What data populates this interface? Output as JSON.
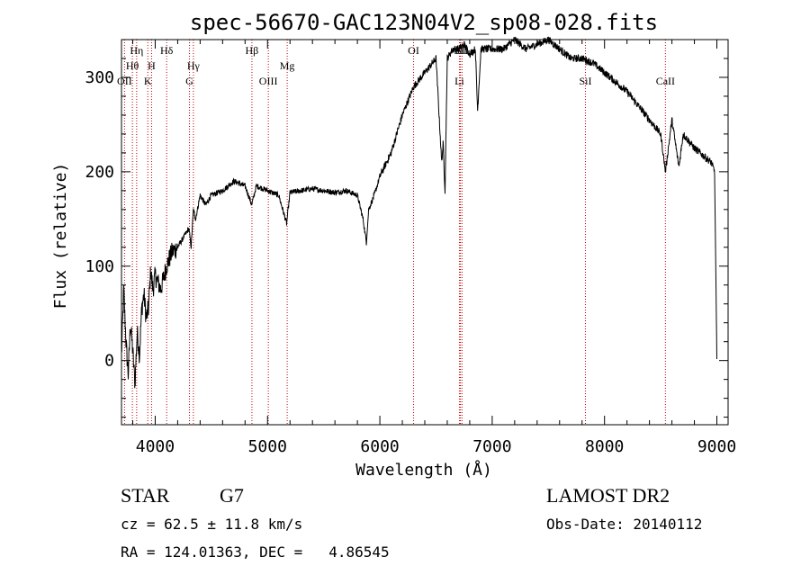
{
  "chart_data": {
    "type": "line",
    "title": "spec-56670-GAC123N04V2_sp08-028.fits",
    "xlabel": "Wavelength (Å)",
    "ylabel": "Flux (relative)",
    "xlim": [
      3700,
      9100
    ],
    "ylim": [
      -68,
      340
    ],
    "xticks": [
      4000,
      5000,
      6000,
      7000,
      8000,
      9000
    ],
    "xtick_labels": [
      "4000",
      "5000",
      "6000",
      "7000",
      "8000",
      "9000"
    ],
    "yticks": [
      0,
      100,
      200,
      300
    ],
    "ytick_labels": [
      "0",
      "100",
      "200",
      "300"
    ],
    "grid": false,
    "line_color": "#000000",
    "marker_color": "#c00000",
    "series": [
      {
        "x": [
          3700,
          3720,
          3740,
          3760,
          3780,
          3800,
          3820,
          3840,
          3860,
          3880,
          3900,
          3920,
          3940,
          3960,
          3980,
          4000,
          4050,
          4100,
          4150,
          4200,
          4250,
          4300,
          4320,
          4340,
          4360,
          4400,
          4450,
          4500,
          4600,
          4700,
          4800,
          4860,
          4900,
          5000,
          5100,
          5170,
          5200,
          5300,
          5400,
          5500,
          5600,
          5700,
          5800,
          5850,
          5880,
          5900,
          5950,
          6000,
          6100,
          6200,
          6300,
          6400,
          6500,
          6550,
          6563,
          6580,
          6600,
          6650,
          6700,
          6750,
          6800,
          6850,
          6870,
          6900,
          7000,
          7100,
          7200,
          7300,
          7400,
          7500,
          7600,
          7700,
          7800,
          7900,
          8000,
          8100,
          8200,
          8300,
          8400,
          8500,
          8542,
          8600,
          8662,
          8700,
          8800,
          8900,
          8950,
          8980,
          9000
        ],
        "y": [
          5,
          75,
          20,
          -15,
          40,
          10,
          -25,
          30,
          5,
          55,
          70,
          45,
          55,
          95,
          75,
          90,
          75,
          100,
          115,
          120,
          130,
          140,
          120,
          160,
          150,
          175,
          165,
          175,
          180,
          190,
          185,
          165,
          185,
          180,
          175,
          145,
          178,
          180,
          182,
          180,
          178,
          180,
          175,
          150,
          125,
          160,
          175,
          195,
          220,
          260,
          290,
          305,
          320,
          210,
          230,
          180,
          320,
          330,
          330,
          335,
          325,
          330,
          265,
          330,
          330,
          330,
          340,
          330,
          335,
          340,
          330,
          320,
          320,
          315,
          305,
          295,
          285,
          270,
          255,
          240,
          200,
          255,
          205,
          240,
          225,
          215,
          210,
          200,
          0
        ]
      }
    ],
    "line_markers": [
      {
        "label": "Hη",
        "wavelength": 3835
      },
      {
        "label": "Hθ",
        "wavelength": 3797
      },
      {
        "label": "OII",
        "wavelength": 3727
      },
      {
        "label": "H",
        "wavelength": 3968
      },
      {
        "label": "K",
        "wavelength": 3934
      },
      {
        "label": "Hδ",
        "wavelength": 4102
      },
      {
        "label": "Hγ",
        "wavelength": 4340
      },
      {
        "label": "G",
        "wavelength": 4305
      },
      {
        "label": "Hβ",
        "wavelength": 4861
      },
      {
        "label": "OIII",
        "wavelength": 5007
      },
      {
        "label": "Mg",
        "wavelength": 5175
      },
      {
        "label": "OI",
        "wavelength": 6300
      },
      {
        "label": "SII",
        "wavelength": 6717
      },
      {
        "label": "SII",
        "wavelength": 6731
      },
      {
        "label": "Li",
        "wavelength": 6708
      },
      {
        "label": "SiI",
        "wavelength": 7830
      },
      {
        "label": "CaII",
        "wavelength": 8542
      }
    ]
  },
  "info": {
    "class": "STAR",
    "subclass": "G7",
    "survey": "LAMOST DR2",
    "cz": "cz = 62.5 ± 11.8 km/s",
    "obs_date": "Obs-Date: 20140112",
    "coords": "RA = 124.01363, DEC =   4.86545"
  }
}
